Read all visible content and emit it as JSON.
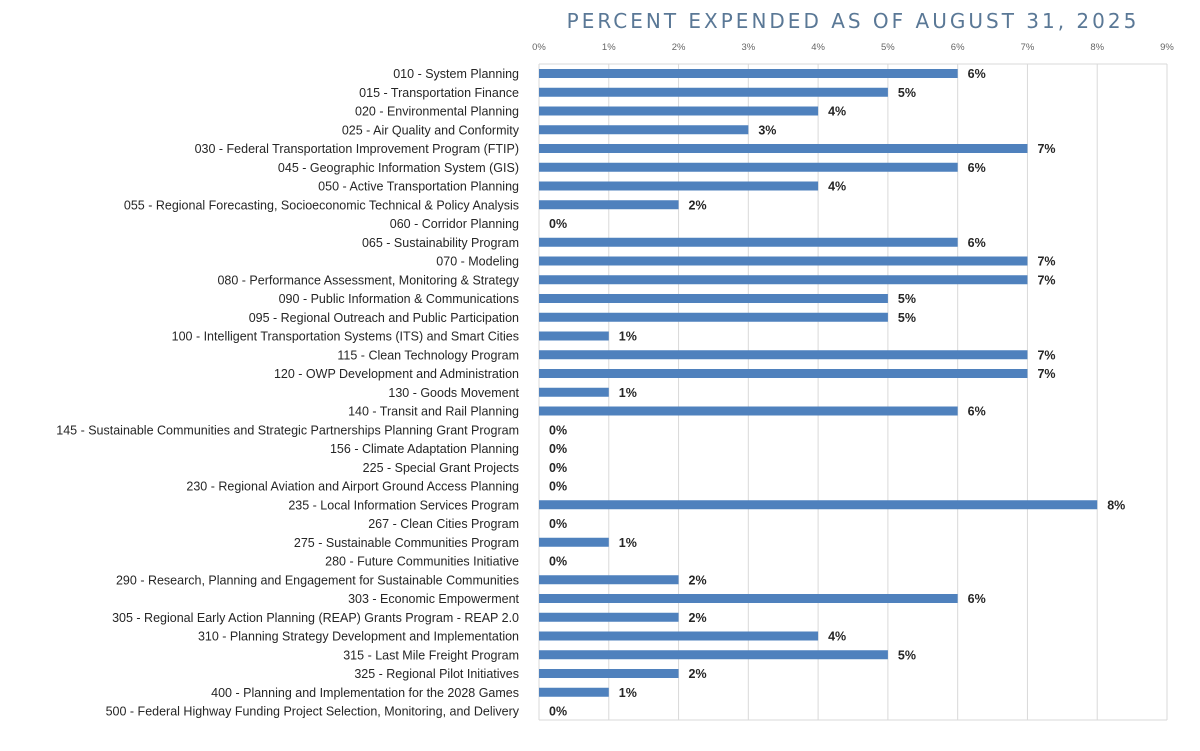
{
  "chart_data": {
    "type": "bar",
    "orientation": "horizontal",
    "title": "PERCENT EXPENDED AS OF AUGUST 31, 2025",
    "xlabel": "",
    "ylabel": "",
    "xlim": [
      0,
      9
    ],
    "x_ticks": [
      "0%",
      "1%",
      "2%",
      "3%",
      "4%",
      "5%",
      "6%",
      "7%",
      "8%",
      "9%"
    ],
    "grid": true,
    "legend": "none",
    "bar_color": "#4f81bd",
    "categories": [
      "010 - System Planning",
      "015 - Transportation Finance",
      "020 - Environmental Planning",
      "025 - Air Quality and Conformity",
      "030 - Federal Transportation Improvement Program (FTIP)",
      "045 - Geographic Information System (GIS)",
      "050 - Active Transportation Planning",
      "055 - Regional Forecasting, Socioeconomic Technical & Policy Analysis",
      "060 - Corridor Planning",
      "065 - Sustainability Program",
      "070 - Modeling",
      "080 - Performance Assessment, Monitoring & Strategy",
      "090 - Public Information & Communications",
      "095 - Regional Outreach and Public Participation",
      "100 - Intelligent Transportation Systems (ITS) and Smart Cities",
      "115 - Clean Technology Program",
      "120 - OWP Development and Administration",
      "130 - Goods Movement",
      "140 - Transit and Rail Planning",
      "145 - Sustainable Communities and Strategic Partnerships Planning Grant Program",
      "156 - Climate Adaptation Planning",
      "225 - Special Grant Projects",
      "230 - Regional Aviation and Airport Ground Access Planning",
      "235 - Local Information Services Program",
      "267 - Clean Cities Program",
      "275 - Sustainable Communities Program",
      "280 - Future Communities Initiative",
      "290 - Research, Planning and Engagement for Sustainable Communities",
      "303 - Economic Empowerment",
      "305 - Regional Early Action Planning (REAP) Grants Program - REAP 2.0",
      "310 - Planning Strategy Development and Implementation",
      "315 - Last Mile Freight Program",
      "325 - Regional Pilot Initiatives",
      "400 - Planning and Implementation for the 2028 Games",
      "500 - Federal Highway Funding Project Selection, Monitoring, and Delivery"
    ],
    "values": [
      6,
      5,
      4,
      3,
      7,
      6,
      4,
      2,
      0,
      6,
      7,
      7,
      5,
      5,
      1,
      7,
      7,
      1,
      6,
      0,
      0,
      0,
      0,
      8,
      0,
      1,
      0,
      2,
      6,
      2,
      4,
      5,
      2,
      1,
      0
    ],
    "data_labels": [
      "6%",
      "5%",
      "4%",
      "3%",
      "7%",
      "6%",
      "4%",
      "2%",
      "0%",
      "6%",
      "7%",
      "7%",
      "5%",
      "5%",
      "1%",
      "7%",
      "7%",
      "1%",
      "6%",
      "0%",
      "0%",
      "0%",
      "0%",
      "8%",
      "0%",
      "1%",
      "0%",
      "2%",
      "6%",
      "2%",
      "4%",
      "5%",
      "2%",
      "1%",
      "0%"
    ]
  }
}
